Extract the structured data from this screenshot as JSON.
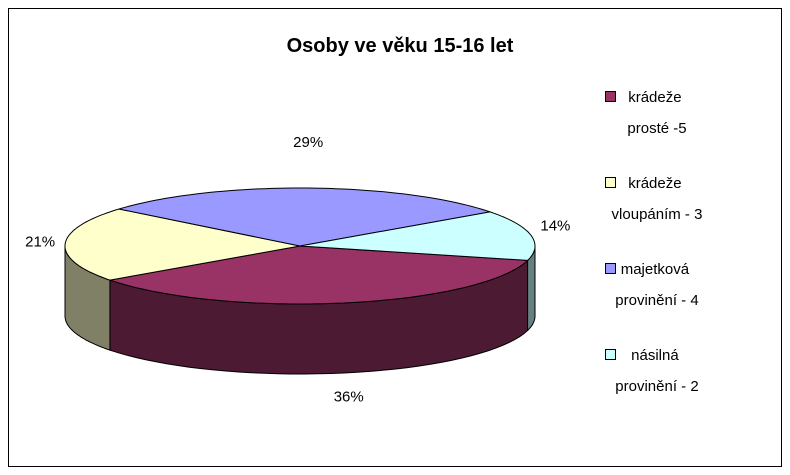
{
  "chart_data": {
    "type": "pie3d",
    "title": "Osoby ve věku 15-16 let",
    "categories": [
      "krádeže prosté -5",
      "krádeže vloupáním - 3",
      "majetková provinění - 4",
      "násilná provinění - 2"
    ],
    "values": [
      36,
      21,
      29,
      14
    ],
    "value_labels": [
      "36%",
      "21%",
      "29%",
      "14%"
    ],
    "colors": [
      "#993366",
      "#FFFFCC",
      "#9999FF",
      "#CCFFFF"
    ],
    "legend": "right"
  }
}
